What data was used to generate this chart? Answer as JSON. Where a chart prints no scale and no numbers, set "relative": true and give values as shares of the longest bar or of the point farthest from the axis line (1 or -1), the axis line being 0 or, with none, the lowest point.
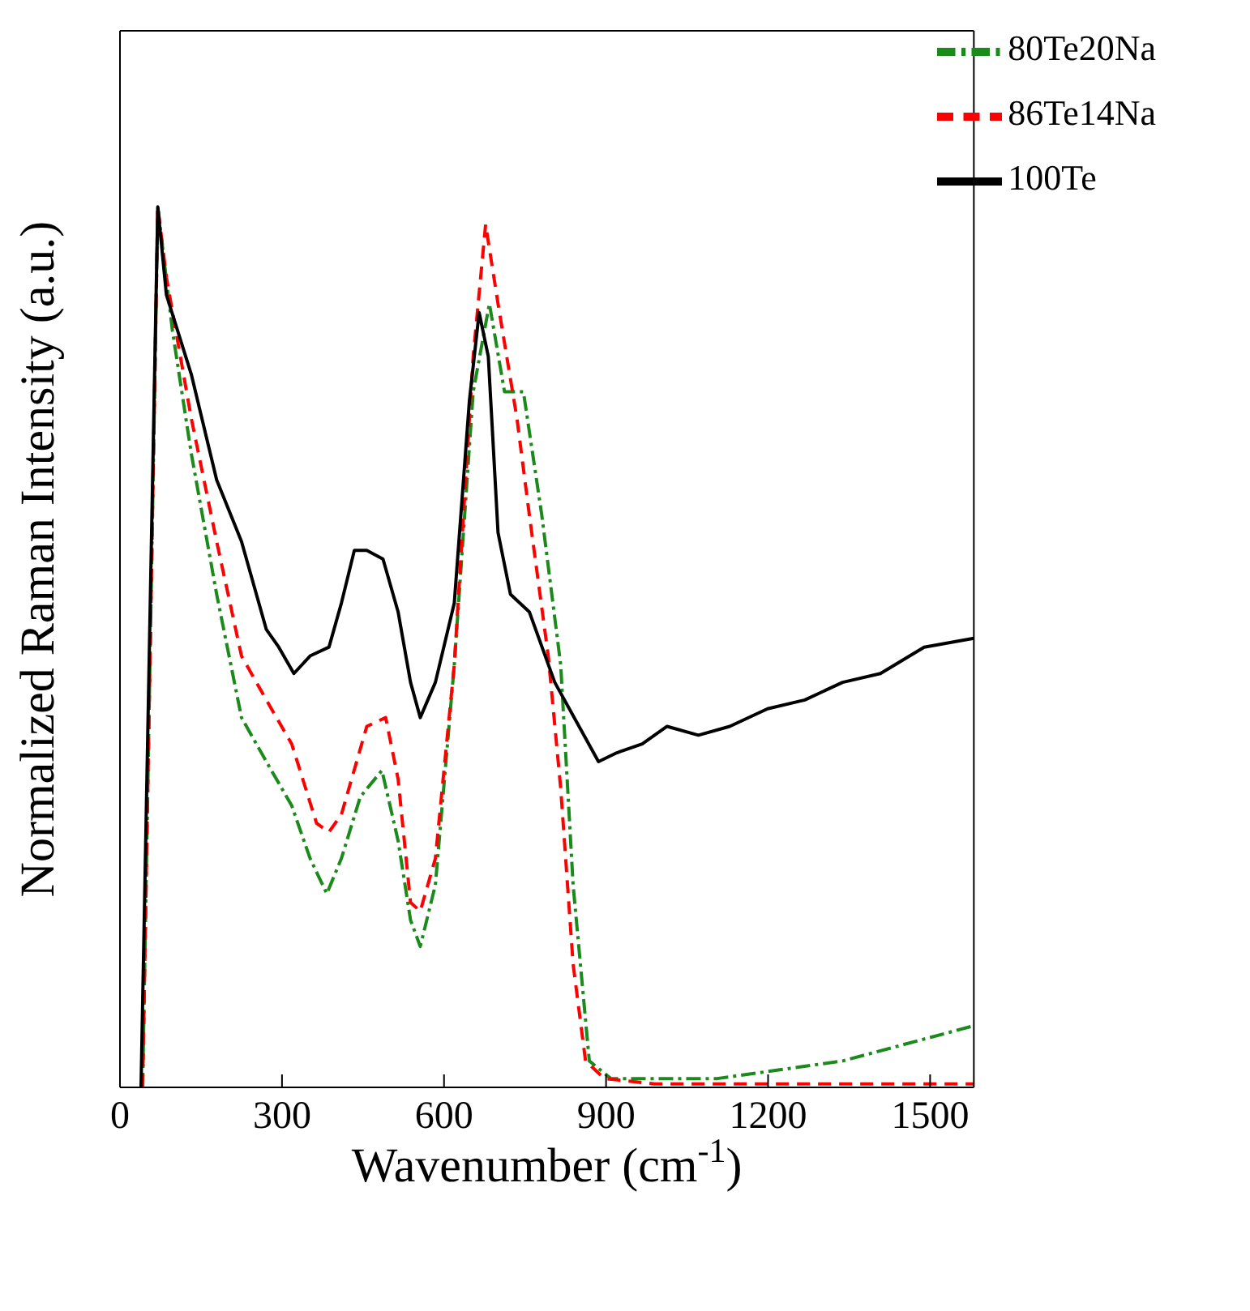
{
  "chart_data": {
    "type": "line",
    "relative": true,
    "xlabel": "Wavenumber (cm$^{-1}$)",
    "ylabel": "Normalized Raman Intensity (a.u.)",
    "xlim": [
      0,
      1581
    ],
    "xticks": [
      0,
      300,
      600,
      900,
      1200,
      1500
    ],
    "grid": false,
    "legend": "top right",
    "marker": "none",
    "series": [
      {
        "name": "80Te20Na",
        "color": "#1a8a1a",
        "line_style": "dashdot",
        "x": [
          42,
          70,
          97,
          132,
          179,
          225,
          271,
          318,
          352,
          383,
          410,
          445,
          485,
          515,
          538,
          556,
          584,
          619,
          654,
          684,
          712,
          747,
          781,
          816,
          839,
          869,
          909,
          1106,
          1338,
          1581
        ],
        "values": [
          0,
          1.0,
          0.86,
          0.72,
          0.56,
          0.42,
          0.37,
          0.32,
          0.26,
          0.22,
          0.26,
          0.33,
          0.36,
          0.28,
          0.19,
          0.16,
          0.23,
          0.48,
          0.79,
          0.89,
          0.79,
          0.79,
          0.65,
          0.48,
          0.23,
          0.03,
          0.01,
          0.01,
          0.03,
          0.07
        ]
      },
      {
        "name": "86Te14Na",
        "color": "#ff0000",
        "line_style": "dashed",
        "x": [
          42,
          70,
          86,
          132,
          179,
          225,
          271,
          318,
          364,
          387,
          410,
          457,
          492,
          515,
          538,
          556,
          584,
          619,
          654,
          677,
          700,
          735,
          758,
          793,
          816,
          839,
          862,
          897,
          990,
          1581
        ],
        "values": [
          0,
          1.0,
          0.92,
          0.76,
          0.62,
          0.49,
          0.44,
          0.39,
          0.3,
          0.29,
          0.31,
          0.41,
          0.42,
          0.35,
          0.21,
          0.2,
          0.26,
          0.48,
          0.83,
          0.98,
          0.89,
          0.76,
          0.65,
          0.49,
          0.34,
          0.14,
          0.03,
          0.01,
          0.004,
          0.004
        ]
      },
      {
        "name": "100Te",
        "color": "#000000",
        "line_style": "solid",
        "x": [
          39,
          70,
          86,
          132,
          179,
          225,
          271,
          294,
          322,
          352,
          387,
          410,
          434,
          457,
          487,
          515,
          538,
          556,
          584,
          619,
          647,
          665,
          682,
          700,
          723,
          758,
          805,
          850,
          886,
          920,
          967,
          1013,
          1071,
          1129,
          1199,
          1268,
          1338,
          1408,
          1489,
          1581
        ],
        "values": [
          0,
          1.0,
          0.9,
          0.81,
          0.69,
          0.62,
          0.52,
          0.5,
          0.47,
          0.49,
          0.5,
          0.55,
          0.61,
          0.61,
          0.6,
          0.54,
          0.46,
          0.42,
          0.46,
          0.55,
          0.78,
          0.88,
          0.83,
          0.63,
          0.56,
          0.54,
          0.46,
          0.41,
          0.37,
          0.38,
          0.39,
          0.41,
          0.4,
          0.41,
          0.43,
          0.44,
          0.46,
          0.47,
          0.5,
          0.51
        ]
      }
    ]
  }
}
